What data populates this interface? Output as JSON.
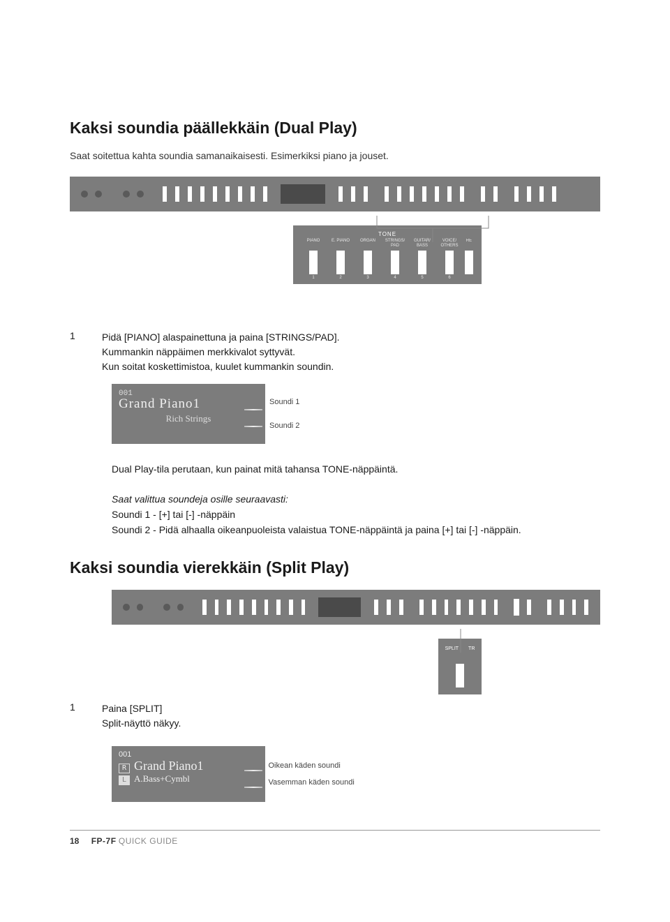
{
  "section1": {
    "title": "Kaksi soundia päällekkäin (Dual Play)",
    "lead": "Saat soitettua kahta soundia samanaikaisesti. Esimerkiksi piano ja jouset."
  },
  "tone_panel": {
    "header": "TONE",
    "items": [
      {
        "label": "PIANO",
        "num": "1"
      },
      {
        "label": "E. PIANO",
        "num": "2"
      },
      {
        "label": "ORGAN",
        "num": "3"
      },
      {
        "label": "STRINGS/\nPAD",
        "num": "4"
      },
      {
        "label": "GUITAR/\nBASS",
        "num": "5"
      },
      {
        "label": "VOICE/\nOTHERS",
        "num": "6"
      },
      {
        "label": "RE",
        "num": ""
      }
    ]
  },
  "step1": {
    "num": "1",
    "line1": "Pidä [PIANO] alaspainettuna ja paina [STRINGS/PAD].",
    "line2": "Kummankin näppäimen merkkivalot syttyvät.",
    "line3": "Kun soitat koskettimistoa, kuulet kummankin soundin."
  },
  "lcd1": {
    "id": "001",
    "line1": "Grand Piano1",
    "line2": "Rich Strings",
    "label1": "Soundi 1",
    "label2": "Soundi 2"
  },
  "dual_info": {
    "p1": "Dual Play-tila perutaan, kun painat mitä tahansa TONE-näppäintä.",
    "p2": "Saat valittua soundeja osille seuraavasti:",
    "p3": "Soundi 1 - [+] tai [-] -näppäin",
    "p4": "Soundi 2 - Pidä alhaalla oikeanpuoleista valaistua TONE-näppäintä ja paina [+] tai [-] -näppäin."
  },
  "section2": {
    "title": "Kaksi soundia vierekkäin (Split Play)"
  },
  "step2": {
    "num": "1",
    "line1": "Paina [SPLIT]",
    "line2": "Split-näyttö näkyy."
  },
  "split_box": {
    "label1": "SPLIT",
    "label2": "TR"
  },
  "lcd2": {
    "id": "001",
    "tagR": "R",
    "name1": "Grand Piano1",
    "tagL": "L",
    "name2": "A.Bass+Cymbl",
    "label1": "Oikean käden soundi",
    "label2": "Vasemman käden soundi"
  },
  "footer": {
    "page": "18",
    "model": "FP-7F",
    "guide": "QUICK GUIDE"
  },
  "colors": {
    "panel": "#7c7c7c",
    "text": "#1a1a1a"
  }
}
